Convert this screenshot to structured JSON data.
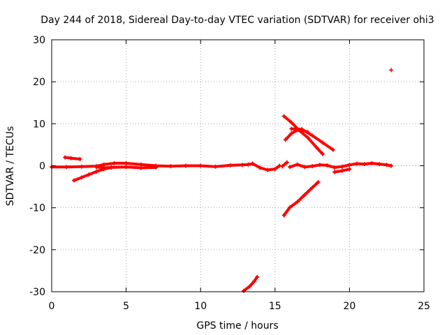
{
  "chart_data": {
    "type": "scatter",
    "title": "Day 244 of 2018, Sidereal Day-to-day VTEC variation (SDTVAR) for receiver ohi3",
    "xlabel": "GPS time / hours",
    "ylabel": "SDTVAR / TECUs",
    "xlim": [
      0,
      25
    ],
    "ylim": [
      -30,
      30
    ],
    "xticks": [
      0,
      5,
      10,
      15,
      20,
      25
    ],
    "yticks": [
      -30,
      -20,
      -10,
      0,
      10,
      20,
      30
    ],
    "xtick_labels": [
      "0",
      "5",
      "10",
      "15",
      "20",
      "25"
    ],
    "ytick_labels": [
      "-30",
      "-20",
      "-10",
      "0",
      "10",
      "20",
      "30"
    ],
    "grid": true,
    "color": "#ff0000",
    "marker": "plus",
    "series": [
      {
        "name": "baseline-early",
        "points": [
          [
            0,
            -0.3
          ],
          [
            1,
            -0.3
          ],
          [
            2,
            -0.2
          ],
          [
            3,
            -0.1
          ],
          [
            3.5,
            0.3
          ],
          [
            4.2,
            0.6
          ],
          [
            5,
            0.6
          ],
          [
            6,
            0.3
          ],
          [
            7,
            0
          ],
          [
            8,
            -0.1
          ],
          [
            9,
            0
          ],
          [
            10,
            0
          ],
          [
            11,
            -0.2
          ],
          [
            12,
            0.1
          ],
          [
            12.8,
            0.2
          ],
          [
            13.2,
            0.3
          ],
          [
            13.5,
            0.5
          ],
          [
            14,
            -0.5
          ],
          [
            14.5,
            -1
          ],
          [
            15,
            -0.8
          ],
          [
            15.3,
            0
          ]
        ]
      },
      {
        "name": "baseline-lower",
        "points": [
          [
            3,
            -0.3
          ],
          [
            3.5,
            -0.5
          ],
          [
            4,
            -0.4
          ],
          [
            5,
            -0.3
          ],
          [
            6,
            -0.5
          ],
          [
            7,
            -0.4
          ]
        ]
      },
      {
        "name": "arc-early-up",
        "points": [
          [
            0.9,
            2
          ],
          [
            1.3,
            1.8
          ],
          [
            1.9,
            1.6
          ]
        ]
      },
      {
        "name": "arc-early-down",
        "points": [
          [
            1.5,
            -3.5
          ],
          [
            2,
            -2.8
          ],
          [
            2.5,
            -2.1
          ],
          [
            3,
            -1.4
          ],
          [
            3.5,
            -0.8
          ],
          [
            4,
            -0.4
          ]
        ]
      },
      {
        "name": "arc-rising-mid",
        "points": [
          [
            15.5,
            -0.1
          ],
          [
            15.8,
            0.8
          ]
        ]
      },
      {
        "name": "baseline-late",
        "points": [
          [
            16,
            -0.3
          ],
          [
            16.5,
            0.3
          ],
          [
            17,
            -0.3
          ],
          [
            17.5,
            -0.1
          ],
          [
            18,
            0.2
          ],
          [
            18.5,
            0.1
          ],
          [
            19,
            -0.4
          ],
          [
            19.5,
            -0.2
          ],
          [
            20,
            0.2
          ],
          [
            20.5,
            0.5
          ],
          [
            21,
            0.4
          ],
          [
            21.5,
            0.6
          ],
          [
            22,
            0.4
          ],
          [
            22.5,
            0.2
          ],
          [
            22.8,
            0
          ]
        ]
      },
      {
        "name": "baseline-late-lower",
        "points": [
          [
            19,
            -1.5
          ],
          [
            19.5,
            -1.2
          ],
          [
            20,
            -0.8
          ]
        ]
      },
      {
        "name": "arc-falling-1",
        "points": [
          [
            15.6,
            11.8
          ],
          [
            16.1,
            10.3
          ],
          [
            16.6,
            8.5
          ],
          [
            17.2,
            6.7
          ],
          [
            17.8,
            4.3
          ],
          [
            18.2,
            2.8
          ]
        ]
      },
      {
        "name": "arc-falling-2",
        "points": [
          [
            16.1,
            8.8
          ],
          [
            16.8,
            8.7
          ],
          [
            17.5,
            7.2
          ],
          [
            18.2,
            5.5
          ],
          [
            18.9,
            3.8
          ]
        ]
      },
      {
        "name": "arc-hump",
        "points": [
          [
            15.7,
            6.2
          ],
          [
            16.1,
            7.7
          ],
          [
            16.5,
            8.5
          ],
          [
            16.9,
            8.4
          ],
          [
            17.2,
            8
          ]
        ]
      },
      {
        "name": "arc-rising-neg",
        "points": [
          [
            15.6,
            -11.8
          ],
          [
            16,
            -9.9
          ],
          [
            16.5,
            -8.6
          ],
          [
            17,
            -6.9
          ],
          [
            17.5,
            -5.2
          ],
          [
            17.9,
            -3.9
          ]
        ]
      },
      {
        "name": "arc-bottom",
        "points": [
          [
            12.9,
            -29.8
          ],
          [
            13.3,
            -28.7
          ],
          [
            13.6,
            -27.5
          ],
          [
            13.8,
            -26.5
          ]
        ]
      },
      {
        "name": "outlier",
        "points": [
          [
            22.8,
            22.8
          ]
        ]
      }
    ]
  }
}
